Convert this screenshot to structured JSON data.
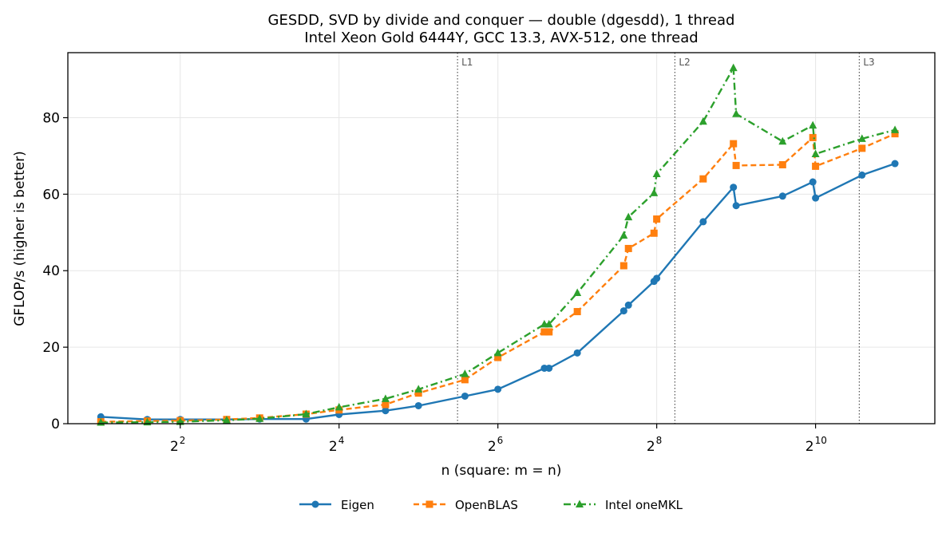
{
  "chart_data": {
    "type": "line",
    "title": "GESDD, SVD by divide and conquer — double (dgesdd), 1 thread",
    "subtitle": "Intel Xeon Gold 6444Y, GCC 13.3, AVX-512, one thread",
    "xlabel": "n (square: m = n)",
    "ylabel": "GFLOP/s (higher is better)",
    "xscale": "log2",
    "xlim": [
      1.5,
      2900
    ],
    "ylim": [
      0,
      97
    ],
    "yticks": [
      0,
      20,
      40,
      60,
      80
    ],
    "xticks": [
      {
        "value": 4,
        "base": "2",
        "exp": "2"
      },
      {
        "value": 16,
        "base": "2",
        "exp": "4"
      },
      {
        "value": 64,
        "base": "2",
        "exp": "6"
      },
      {
        "value": 256,
        "base": "2",
        "exp": "8"
      },
      {
        "value": 1024,
        "base": "2",
        "exp": "10"
      }
    ],
    "grid": true,
    "legend_position": "bottom-center",
    "cache_lines": [
      {
        "label": "L1",
        "x": 45
      },
      {
        "label": "L2",
        "x": 300
      },
      {
        "label": "L3",
        "x": 1500
      }
    ],
    "x": [
      2,
      3,
      4,
      6,
      8,
      12,
      16,
      24,
      32,
      48,
      64,
      96,
      100,
      128,
      192,
      200,
      250,
      256,
      384,
      500,
      512,
      768,
      1000,
      1024,
      1536,
      2048
    ],
    "series": [
      {
        "name": "Eigen",
        "color": "#1f77b4",
        "marker": "circle",
        "dash": "solid",
        "values": [
          1.8,
          1.1,
          1.1,
          1.1,
          1.2,
          1.2,
          2.4,
          3.4,
          4.7,
          7.2,
          9.0,
          14.5,
          14.5,
          18.5,
          29.5,
          31.0,
          37.2,
          38.0,
          52.8,
          61.8,
          57.0,
          59.5,
          63.2,
          59.0,
          65.0,
          68.0
        ]
      },
      {
        "name": "OpenBLAS",
        "color": "#ff7f0e",
        "marker": "square",
        "dash": "dashed",
        "values": [
          0.5,
          0.7,
          0.8,
          1.1,
          1.5,
          2.5,
          3.6,
          5.0,
          8.0,
          11.5,
          17.3,
          24.0,
          24.0,
          29.3,
          41.3,
          45.8,
          49.8,
          53.5,
          64.0,
          73.2,
          67.5,
          67.7,
          74.8,
          67.3,
          72.0,
          75.8
        ]
      },
      {
        "name": "Intel oneMKL",
        "color": "#2ca02c",
        "marker": "triangle",
        "dash": "dashdot",
        "values": [
          0.3,
          0.4,
          0.5,
          0.9,
          1.3,
          2.5,
          4.3,
          6.5,
          9.0,
          13.0,
          18.5,
          26.0,
          26.0,
          34.2,
          49.2,
          54.0,
          60.3,
          65.3,
          79.0,
          93.0,
          81.0,
          73.8,
          78.0,
          70.5,
          74.5,
          76.8
        ]
      }
    ]
  }
}
